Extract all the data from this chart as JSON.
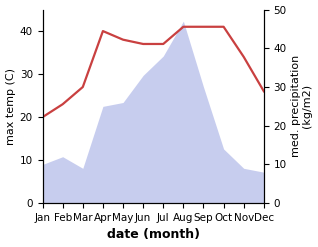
{
  "months": [
    "Jan",
    "Feb",
    "Mar",
    "Apr",
    "May",
    "Jun",
    "Jul",
    "Aug",
    "Sep",
    "Oct",
    "Nov",
    "Dec"
  ],
  "month_indices": [
    1,
    2,
    3,
    4,
    5,
    6,
    7,
    8,
    9,
    10,
    11,
    12
  ],
  "temperature": [
    20,
    23,
    27,
    40,
    38,
    37,
    37,
    41,
    41,
    41,
    34,
    26
  ],
  "precipitation": [
    10,
    12,
    9,
    25,
    26,
    33,
    38,
    47,
    30,
    14,
    9,
    8
  ],
  "temp_color": "#c94040",
  "precip_color": "#b0b8e8",
  "title": "",
  "xlabel": "date (month)",
  "ylabel_left": "max temp (C)",
  "ylabel_right": "med. precipitation\n(kg/m2)",
  "ylim_left": [
    0,
    45
  ],
  "ylim_right": [
    0,
    50
  ],
  "yticks_left": [
    0,
    10,
    20,
    30,
    40
  ],
  "yticks_right": [
    0,
    10,
    20,
    30,
    40,
    50
  ],
  "temp_linewidth": 1.6,
  "xlabel_fontsize": 9,
  "ylabel_fontsize": 8,
  "tick_fontsize": 7.5
}
